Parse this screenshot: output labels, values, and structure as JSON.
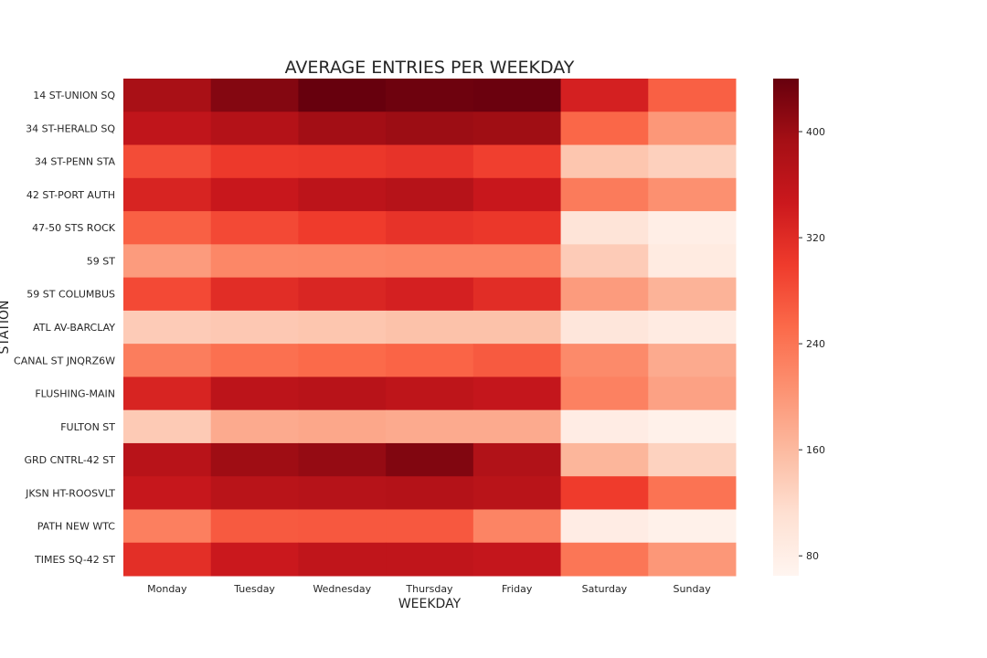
{
  "chart_data": {
    "type": "heatmap",
    "title": "AVERAGE ENTRIES PER WEEKDAY",
    "xlabel": "WEEKDAY",
    "ylabel": "STATION",
    "x": [
      "Monday",
      "Tuesday",
      "Wednesday",
      "Thursday",
      "Friday",
      "Saturday",
      "Sunday"
    ],
    "y": [
      "14 ST-UNION SQ",
      "34 ST-HERALD SQ",
      "34 ST-PENN STA",
      "42 ST-PORT AUTH",
      "47-50 STS ROCK",
      "59 ST",
      "59 ST COLUMBUS",
      "ATL AV-BARCLAY",
      "CANAL ST JNQRZ6W",
      "FLUSHING-MAIN",
      "FULTON ST",
      "GRD CNTRL-42 ST",
      "JKSN HT-ROOSVLT",
      "PATH NEW WTC",
      "TIMES SQ-42 ST"
    ],
    "values": [
      [
        388,
        418,
        442,
        435,
        437,
        335,
        262
      ],
      [
        360,
        375,
        395,
        400,
        397,
        255,
        200
      ],
      [
        282,
        302,
        305,
        310,
        295,
        145,
        132
      ],
      [
        330,
        350,
        365,
        372,
        350,
        232,
        208
      ],
      [
        262,
        285,
        300,
        310,
        305,
        102,
        80
      ],
      [
        195,
        218,
        220,
        222,
        222,
        138,
        88
      ],
      [
        285,
        318,
        328,
        335,
        318,
        195,
        168
      ],
      [
        138,
        142,
        145,
        150,
        150,
        98,
        87
      ],
      [
        230,
        245,
        252,
        258,
        268,
        215,
        178
      ],
      [
        330,
        365,
        370,
        362,
        355,
        225,
        188
      ],
      [
        140,
        178,
        182,
        178,
        178,
        84,
        75
      ],
      [
        370,
        398,
        405,
        420,
        378,
        165,
        130
      ],
      [
        352,
        368,
        372,
        375,
        368,
        300,
        242
      ],
      [
        228,
        268,
        270,
        270,
        222,
        84,
        75
      ],
      [
        315,
        348,
        360,
        360,
        355,
        238,
        200
      ]
    ],
    "colorbar": {
      "range": [
        65,
        440
      ],
      "ticks": [
        80,
        160,
        240,
        320,
        400
      ]
    },
    "colormap": "Reds"
  }
}
